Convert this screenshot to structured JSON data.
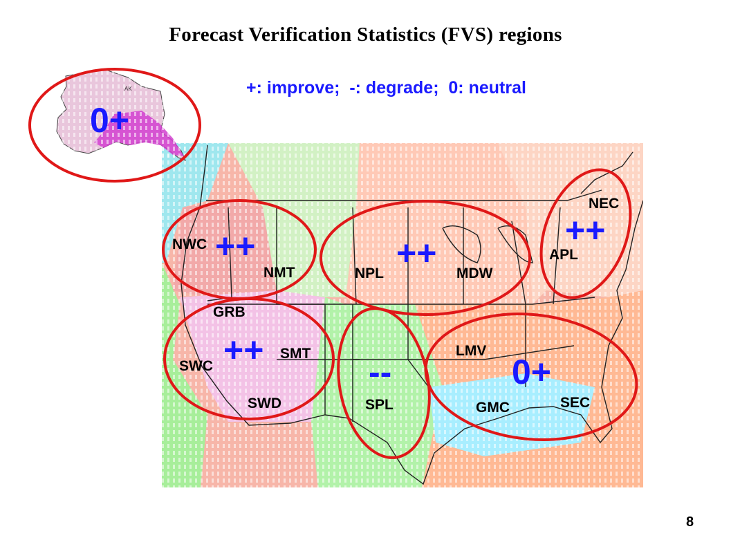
{
  "title": "Forecast Verification Statistics (FVS) regions",
  "legend": "+: improve;  -: degrade;  0: neutral",
  "page_number": "8",
  "colors": {
    "circle": "#e01818",
    "score": "#1a1aff",
    "label": "#000000"
  },
  "alaska": {
    "label": "AK",
    "score": "0+"
  },
  "regions": [
    {
      "code": "NWC",
      "score": "++"
    },
    {
      "code": "NMT",
      "score": "++"
    },
    {
      "code": "NPL",
      "score": "++"
    },
    {
      "code": "MDW",
      "score": "++"
    },
    {
      "code": "NEC",
      "score": "++"
    },
    {
      "code": "APL",
      "score": "++"
    },
    {
      "code": "GRB",
      "score": "++"
    },
    {
      "code": "SWC",
      "score": "++"
    },
    {
      "code": "SMT",
      "score": "++"
    },
    {
      "code": "SWD",
      "score": "++"
    },
    {
      "code": "SPL",
      "score": "--"
    },
    {
      "code": "LMV",
      "score": "0+"
    },
    {
      "code": "GMC",
      "score": "0+"
    },
    {
      "code": "SEC",
      "score": "0+"
    }
  ],
  "circle_scores": {
    "northwest": "++",
    "north_central": "++",
    "northeast": "++",
    "southwest": "++",
    "south_plains": "--",
    "southeast": "0+"
  }
}
